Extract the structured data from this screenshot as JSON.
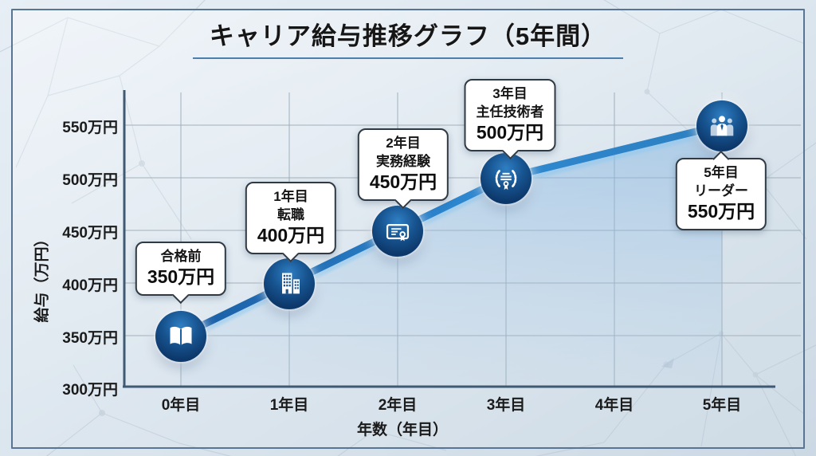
{
  "title": "キャリア給与推移グラフ（5年間）",
  "colors": {
    "line_gradient": [
      "#1a5da4",
      "#2e89d1",
      "#2d7fc0"
    ],
    "line_glow": "#90c8ef",
    "marker_fill_dark": "#0c3668",
    "marker_fill_light": "#2f7fc4",
    "area_fill": "#7cb0e0",
    "grid": "#a8b4be",
    "axis": "#3f5a73",
    "title_underline": "#4a7fae",
    "frame_border": "#587693",
    "callout_border": "#2f3a44",
    "callout_bg": "#ffffff",
    "text": "#1a1a1a"
  },
  "chart_data": {
    "type": "line",
    "title": "キャリア給与推移グラフ（5年間）",
    "xlabel": "年数（年目）",
    "ylabel": "給与（万円）",
    "unit": "万円",
    "x": [
      0,
      1,
      2,
      3,
      4,
      5
    ],
    "values": [
      350,
      400,
      450,
      500,
      525,
      550
    ],
    "x_tick_labels": [
      "0年目",
      "1年目",
      "2年目",
      "3年目",
      "4年目",
      "5年目"
    ],
    "y_tick_labels": [
      "550万円",
      "500万円",
      "450万円",
      "400万円",
      "350万円",
      "300万円"
    ],
    "y_tick_values": [
      550,
      500,
      450,
      400,
      350,
      300
    ],
    "ylim": [
      300,
      585
    ],
    "grid": true,
    "legend": "none",
    "milestones": [
      {
        "year": 0,
        "salary": 350,
        "icon": "open-book",
        "lines": [
          "合格前",
          "350万円"
        ]
      },
      {
        "year": 1,
        "salary": 400,
        "icon": "office-building",
        "lines": [
          "1年目",
          "転職",
          "400万円"
        ]
      },
      {
        "year": 2,
        "salary": 450,
        "icon": "certificate",
        "lines": [
          "2年目",
          "実務経験",
          "450万円"
        ]
      },
      {
        "year": 3,
        "salary": 500,
        "icon": "award-wreath",
        "lines": [
          "3年目",
          "主任技術者",
          "500万円"
        ]
      },
      {
        "year": 5,
        "salary": 550,
        "icon": "team",
        "lines": [
          "5年目",
          "リーダー",
          "550万円"
        ]
      }
    ]
  }
}
